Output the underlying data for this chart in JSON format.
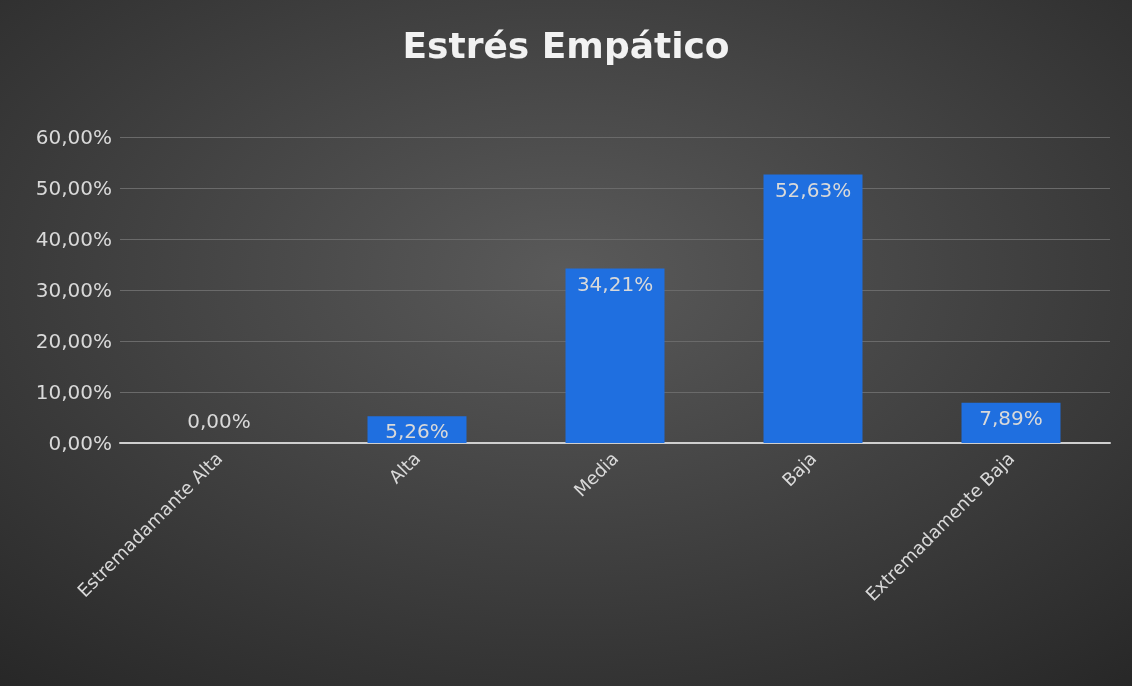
{
  "chart_data": {
    "type": "bar",
    "title": "Estrés Empático",
    "categories": [
      "Estremadamante Alta",
      "Alta",
      "Media",
      "Baja",
      "Extremadamente Baja"
    ],
    "values": [
      0,
      5.26,
      34.21,
      52.63,
      7.89
    ],
    "value_labels": [
      "0,00%",
      "5,26%",
      "34,21%",
      "52,63%",
      "7,89%"
    ],
    "color": "#1f6fe0",
    "ylim": [
      0,
      60
    ],
    "yticks": [
      {
        "value": 0,
        "label": "0,00%"
      },
      {
        "value": 10,
        "label": "10,00%"
      },
      {
        "value": 20,
        "label": "20,00%"
      },
      {
        "value": 30,
        "label": "30,00%"
      },
      {
        "value": 40,
        "label": "40,00%"
      },
      {
        "value": 50,
        "label": "50,00%"
      },
      {
        "value": 60,
        "label": "60,00%"
      }
    ],
    "grid": "y"
  }
}
